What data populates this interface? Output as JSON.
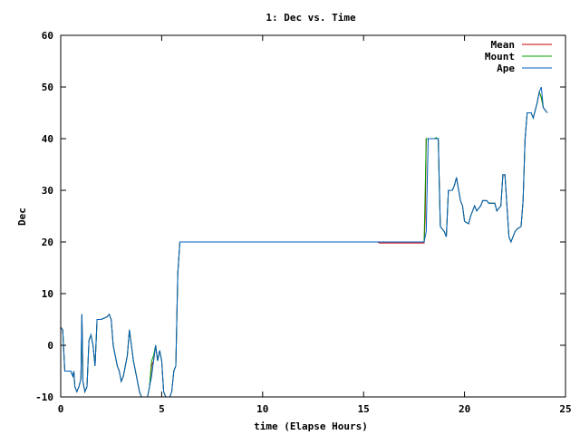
{
  "chart_data": {
    "type": "line",
    "title": "1: Dec vs. Time",
    "xlabel": "time (Elapse Hours)",
    "ylabel": "Dec",
    "xlim": [
      0,
      25
    ],
    "ylim": [
      -10,
      60
    ],
    "xticks": [
      0,
      5,
      10,
      15,
      20,
      25
    ],
    "yticks": [
      -10,
      0,
      10,
      20,
      30,
      40,
      50,
      60
    ],
    "grid": false,
    "legend_position": "top-right",
    "series": [
      {
        "name": "Mean",
        "color": "#cc0000",
        "points": [
          [
            0,
            3.5
          ],
          [
            0.1,
            3
          ],
          [
            0.2,
            -5
          ],
          [
            0.5,
            -5
          ],
          [
            0.6,
            -6
          ],
          [
            0.65,
            -5
          ],
          [
            0.7,
            -8
          ],
          [
            0.8,
            -9
          ],
          [
            0.9,
            -8
          ],
          [
            1.0,
            -6.5
          ],
          [
            1.05,
            6
          ],
          [
            1.1,
            -7
          ],
          [
            1.2,
            -9
          ],
          [
            1.3,
            -8
          ],
          [
            1.4,
            1
          ],
          [
            1.5,
            2
          ],
          [
            1.6,
            0
          ],
          [
            1.7,
            -4
          ],
          [
            1.8,
            5
          ],
          [
            2.0,
            5
          ],
          [
            2.3,
            5.5
          ],
          [
            2.4,
            6
          ],
          [
            2.5,
            5
          ],
          [
            2.6,
            0
          ],
          [
            2.8,
            -4
          ],
          [
            2.9,
            -5
          ],
          [
            3.0,
            -7
          ],
          [
            3.1,
            -6
          ],
          [
            3.3,
            -2
          ],
          [
            3.4,
            3
          ],
          [
            3.5,
            0
          ],
          [
            3.6,
            -3
          ],
          [
            3.8,
            -7
          ],
          [
            3.9,
            -9
          ],
          [
            4.0,
            -10
          ],
          [
            4.3,
            -10
          ],
          [
            4.4,
            -8
          ],
          [
            4.5,
            -4
          ],
          [
            4.6,
            -3
          ],
          [
            4.7,
            0
          ],
          [
            4.8,
            -3
          ],
          [
            4.9,
            -1
          ],
          [
            5.0,
            -3
          ],
          [
            5.1,
            -9
          ],
          [
            5.2,
            -10
          ],
          [
            5.4,
            -10
          ],
          [
            5.5,
            -9
          ],
          [
            5.6,
            -5
          ],
          [
            5.7,
            -4
          ],
          [
            5.8,
            14
          ],
          [
            5.9,
            20
          ],
          [
            15.7,
            20
          ],
          [
            15.8,
            19.8
          ],
          [
            18.0,
            19.8
          ],
          [
            18.05,
            25
          ],
          [
            18.1,
            40
          ],
          [
            18.5,
            40
          ],
          [
            18.7,
            40
          ],
          [
            18.8,
            23
          ],
          [
            19.0,
            22
          ],
          [
            19.1,
            21
          ],
          [
            19.2,
            30
          ],
          [
            19.4,
            30
          ],
          [
            19.5,
            31
          ],
          [
            19.6,
            32.5
          ],
          [
            19.8,
            28
          ],
          [
            19.9,
            27
          ],
          [
            20.0,
            24
          ],
          [
            20.2,
            23.5
          ],
          [
            20.3,
            25
          ],
          [
            20.5,
            27
          ],
          [
            20.6,
            26
          ],
          [
            20.8,
            27
          ],
          [
            20.9,
            28
          ],
          [
            21.1,
            28
          ],
          [
            21.2,
            27.5
          ],
          [
            21.5,
            27.5
          ],
          [
            21.6,
            26
          ],
          [
            21.8,
            27
          ],
          [
            21.9,
            33
          ],
          [
            22.0,
            33
          ],
          [
            22.1,
            27
          ],
          [
            22.2,
            21
          ],
          [
            22.3,
            20
          ],
          [
            22.4,
            21
          ],
          [
            22.5,
            22
          ],
          [
            22.6,
            22.5
          ],
          [
            22.8,
            23
          ],
          [
            22.9,
            28
          ],
          [
            23.0,
            40
          ],
          [
            23.1,
            45
          ],
          [
            23.3,
            45
          ],
          [
            23.4,
            44
          ],
          [
            23.6,
            47
          ],
          [
            23.7,
            49
          ],
          [
            23.8,
            48
          ],
          [
            23.9,
            46
          ],
          [
            24.0,
            45.5
          ],
          [
            24.1,
            45
          ]
        ]
      },
      {
        "name": "Mount",
        "color": "#00a000",
        "points": [
          [
            0,
            3.5
          ],
          [
            0.1,
            3
          ],
          [
            0.2,
            -5
          ],
          [
            0.5,
            -5
          ],
          [
            0.6,
            -6
          ],
          [
            0.65,
            -5
          ],
          [
            0.7,
            -8
          ],
          [
            0.8,
            -9
          ],
          [
            0.9,
            -8
          ],
          [
            1.0,
            -6.5
          ],
          [
            1.05,
            6
          ],
          [
            1.1,
            -7
          ],
          [
            1.2,
            -9
          ],
          [
            1.3,
            -8
          ],
          [
            1.4,
            1
          ],
          [
            1.5,
            2
          ],
          [
            1.6,
            0
          ],
          [
            1.7,
            -4
          ],
          [
            1.8,
            5
          ],
          [
            2.0,
            5
          ],
          [
            2.3,
            5.5
          ],
          [
            2.4,
            6
          ],
          [
            2.5,
            5
          ],
          [
            2.6,
            0
          ],
          [
            2.8,
            -4
          ],
          [
            2.9,
            -5
          ],
          [
            3.0,
            -7
          ],
          [
            3.1,
            -6
          ],
          [
            3.3,
            -2
          ],
          [
            3.4,
            3
          ],
          [
            3.5,
            0
          ],
          [
            3.6,
            -3
          ],
          [
            3.8,
            -7
          ],
          [
            3.9,
            -9
          ],
          [
            4.0,
            -10
          ],
          [
            4.3,
            -10
          ],
          [
            4.4,
            -8
          ],
          [
            4.5,
            -3
          ],
          [
            4.6,
            -2
          ],
          [
            4.7,
            0
          ],
          [
            4.8,
            -3
          ],
          [
            4.9,
            -1
          ],
          [
            5.0,
            -3
          ],
          [
            5.1,
            -9
          ],
          [
            5.2,
            -10
          ],
          [
            5.4,
            -10
          ],
          [
            5.5,
            -9
          ],
          [
            5.6,
            -5
          ],
          [
            5.7,
            -4
          ],
          [
            5.8,
            14
          ],
          [
            5.9,
            20
          ],
          [
            18.0,
            20
          ],
          [
            18.05,
            30
          ],
          [
            18.1,
            40
          ],
          [
            18.5,
            40
          ],
          [
            18.6,
            40.2
          ],
          [
            18.7,
            40
          ],
          [
            18.75,
            30
          ],
          [
            18.8,
            23
          ],
          [
            19.0,
            22
          ],
          [
            19.1,
            21
          ],
          [
            19.2,
            30
          ],
          [
            19.4,
            30
          ],
          [
            19.5,
            31
          ],
          [
            19.6,
            32.5
          ],
          [
            19.8,
            28
          ],
          [
            19.9,
            27
          ],
          [
            20.0,
            24
          ],
          [
            20.2,
            23.5
          ],
          [
            20.3,
            25
          ],
          [
            20.5,
            27
          ],
          [
            20.6,
            26
          ],
          [
            20.8,
            27
          ],
          [
            20.9,
            28
          ],
          [
            21.1,
            28
          ],
          [
            21.2,
            27.5
          ],
          [
            21.5,
            27.5
          ],
          [
            21.6,
            26
          ],
          [
            21.8,
            27
          ],
          [
            21.9,
            33
          ],
          [
            22.0,
            33
          ],
          [
            22.1,
            27
          ],
          [
            22.2,
            21
          ],
          [
            22.3,
            20
          ],
          [
            22.4,
            21
          ],
          [
            22.5,
            22
          ],
          [
            22.6,
            22.5
          ],
          [
            22.8,
            23
          ],
          [
            22.9,
            28
          ],
          [
            23.0,
            40
          ],
          [
            23.1,
            45
          ],
          [
            23.3,
            45
          ],
          [
            23.4,
            44
          ],
          [
            23.6,
            47
          ],
          [
            23.7,
            49
          ],
          [
            23.8,
            48
          ],
          [
            23.9,
            46
          ],
          [
            24.0,
            45.5
          ],
          [
            24.1,
            45
          ]
        ]
      },
      {
        "name": "Ape",
        "color": "#0060c0",
        "points": [
          [
            0,
            3.5
          ],
          [
            0.1,
            3
          ],
          [
            0.2,
            -5
          ],
          [
            0.5,
            -5
          ],
          [
            0.6,
            -6
          ],
          [
            0.65,
            -5
          ],
          [
            0.7,
            -8
          ],
          [
            0.8,
            -9
          ],
          [
            0.9,
            -8
          ],
          [
            1.0,
            -6.5
          ],
          [
            1.05,
            6
          ],
          [
            1.1,
            -7
          ],
          [
            1.2,
            -9
          ],
          [
            1.3,
            -8
          ],
          [
            1.4,
            1
          ],
          [
            1.5,
            2
          ],
          [
            1.6,
            0
          ],
          [
            1.7,
            -4
          ],
          [
            1.8,
            5
          ],
          [
            2.0,
            5
          ],
          [
            2.3,
            5.5
          ],
          [
            2.4,
            6
          ],
          [
            2.5,
            5
          ],
          [
            2.6,
            0
          ],
          [
            2.8,
            -4
          ],
          [
            2.9,
            -5
          ],
          [
            3.0,
            -7
          ],
          [
            3.1,
            -6
          ],
          [
            3.3,
            -2
          ],
          [
            3.4,
            3
          ],
          [
            3.5,
            0
          ],
          [
            3.6,
            -3
          ],
          [
            3.8,
            -7
          ],
          [
            3.9,
            -9
          ],
          [
            4.0,
            -10
          ],
          [
            4.3,
            -10
          ],
          [
            4.4,
            -8
          ],
          [
            4.5,
            -6
          ],
          [
            4.6,
            -3
          ],
          [
            4.7,
            0
          ],
          [
            4.8,
            -3
          ],
          [
            4.9,
            -1
          ],
          [
            5.0,
            -3
          ],
          [
            5.1,
            -9
          ],
          [
            5.2,
            -10
          ],
          [
            5.4,
            -10
          ],
          [
            5.5,
            -9
          ],
          [
            5.6,
            -5
          ],
          [
            5.7,
            -4
          ],
          [
            5.8,
            14
          ],
          [
            5.9,
            20
          ],
          [
            18.0,
            20
          ],
          [
            18.1,
            22
          ],
          [
            18.2,
            40
          ],
          [
            18.5,
            40
          ],
          [
            18.7,
            40
          ],
          [
            18.8,
            23
          ],
          [
            19.0,
            22
          ],
          [
            19.1,
            21
          ],
          [
            19.2,
            30
          ],
          [
            19.4,
            30
          ],
          [
            19.5,
            31
          ],
          [
            19.6,
            32.5
          ],
          [
            19.8,
            28
          ],
          [
            19.9,
            27
          ],
          [
            20.0,
            24
          ],
          [
            20.2,
            23.5
          ],
          [
            20.3,
            25
          ],
          [
            20.5,
            27
          ],
          [
            20.6,
            26
          ],
          [
            20.8,
            27
          ],
          [
            20.9,
            28
          ],
          [
            21.1,
            28
          ],
          [
            21.2,
            27.5
          ],
          [
            21.5,
            27.5
          ],
          [
            21.6,
            26
          ],
          [
            21.8,
            27
          ],
          [
            21.9,
            33
          ],
          [
            22.0,
            33
          ],
          [
            22.1,
            27
          ],
          [
            22.2,
            21
          ],
          [
            22.3,
            20
          ],
          [
            22.4,
            21
          ],
          [
            22.5,
            22
          ],
          [
            22.6,
            22.5
          ],
          [
            22.8,
            23
          ],
          [
            22.9,
            28
          ],
          [
            23.0,
            40
          ],
          [
            23.1,
            45
          ],
          [
            23.3,
            45
          ],
          [
            23.4,
            44
          ],
          [
            23.6,
            47
          ],
          [
            23.7,
            49
          ],
          [
            23.8,
            50
          ],
          [
            23.9,
            46
          ],
          [
            24.0,
            45.5
          ],
          [
            24.1,
            45
          ]
        ]
      }
    ]
  }
}
